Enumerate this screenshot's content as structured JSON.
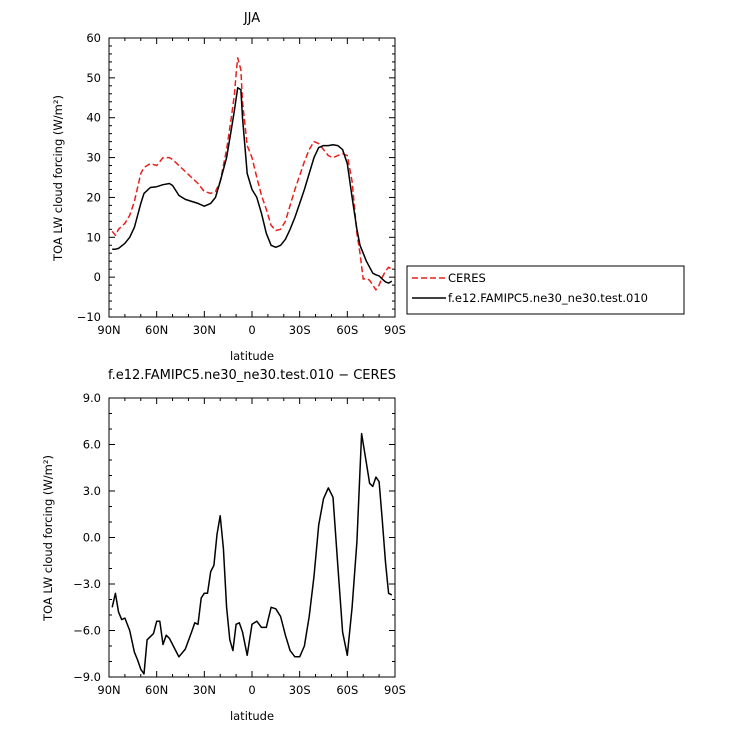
{
  "chart_data": [
    {
      "type": "line",
      "title": "JJA",
      "xlabel": "latitude",
      "ylabel": "TOA LW cloud forcing (W/m²)",
      "xlim": [
        90,
        -90
      ],
      "ylim": [
        -10,
        60
      ],
      "x_ticks": [
        90,
        60,
        30,
        0,
        -30,
        -60,
        -90
      ],
      "x_tick_labels": [
        "90N",
        "60N",
        "30N",
        "0",
        "30S",
        "60S",
        "90S"
      ],
      "y_ticks": [
        -10,
        0,
        10,
        20,
        30,
        40,
        50,
        60
      ],
      "y_tick_labels": [
        "−10",
        "0",
        "10",
        "20",
        "30",
        "40",
        "50",
        "60"
      ],
      "legend_position": "right",
      "series": [
        {
          "name": "CERES",
          "color": "#e8201c",
          "dash": "dashed",
          "x": [
            88,
            86,
            84,
            80,
            77,
            74,
            70,
            68,
            64,
            60,
            56,
            52,
            50,
            46,
            42,
            38,
            34,
            30,
            26,
            23,
            20,
            16,
            13,
            11,
            10,
            9,
            7,
            6,
            3,
            0,
            -3,
            -6,
            -9,
            -12,
            -15,
            -18,
            -21,
            -24,
            -27,
            -30,
            -33,
            -36,
            -39,
            -42,
            -45,
            -48,
            -51,
            -54,
            -57,
            -60,
            -63,
            -66,
            -68,
            -70,
            -72,
            -74,
            -76,
            -78,
            -80,
            -82,
            -84,
            -86,
            -88
          ],
          "values": [
            11.5,
            10.5,
            12,
            13.5,
            15.5,
            19,
            26,
            27.5,
            28.5,
            28,
            30,
            30,
            29.5,
            28,
            26.5,
            25,
            23.5,
            21.5,
            21,
            21.5,
            24,
            32,
            40,
            46,
            51,
            55,
            52,
            44,
            33,
            30,
            25,
            20.5,
            17,
            13,
            11.7,
            12,
            14,
            18,
            22,
            25.5,
            29,
            32,
            34,
            33.5,
            32,
            30.5,
            30,
            30.5,
            31,
            30.5,
            24,
            11,
            6,
            -0.5,
            -0.3,
            -0.8,
            -2,
            -3.2,
            -2,
            0,
            1.5,
            2.5,
            2
          ]
        },
        {
          "name": "f.e12.FAMIPC5.ne30_ne30.test.010",
          "color": "#000000",
          "dash": "solid",
          "x": [
            88,
            86,
            84,
            80,
            77,
            74,
            70,
            68,
            64,
            60,
            56,
            52,
            50,
            46,
            42,
            38,
            34,
            30,
            26,
            23,
            20,
            16,
            13,
            11,
            9,
            7,
            6,
            3,
            0,
            -3,
            -6,
            -9,
            -12,
            -15,
            -18,
            -21,
            -24,
            -27,
            -30,
            -33,
            -36,
            -39,
            -42,
            -45,
            -48,
            -51,
            -54,
            -57,
            -60,
            -63,
            -66,
            -68,
            -70,
            -72,
            -74,
            -76,
            -78,
            -80,
            -82,
            -84,
            -86,
            -88
          ],
          "values": [
            7,
            7,
            7.2,
            8.5,
            10,
            12.5,
            18.5,
            21,
            22.5,
            22.7,
            23.2,
            23.5,
            23,
            20.5,
            19.5,
            19,
            18.5,
            17.8,
            18.5,
            20,
            24,
            30,
            37,
            42,
            47.5,
            47,
            40,
            26,
            22,
            20,
            16,
            11,
            8,
            7.5,
            8,
            9.5,
            12,
            15,
            18.5,
            22,
            26,
            30,
            32.5,
            33,
            33,
            33.2,
            33,
            32,
            28.5,
            20,
            12,
            8,
            6,
            4,
            2.5,
            1,
            0.6,
            0.3,
            -0.5,
            -1.2,
            -1.5,
            -1
          ]
        }
      ]
    },
    {
      "type": "line",
      "title": "f.e12.FAMIPC5.ne30_ne30.test.010 − CERES",
      "xlabel": "latitude",
      "ylabel": "TOA LW cloud forcing (W/m²)",
      "xlim": [
        90,
        -90
      ],
      "ylim": [
        -9,
        9
      ],
      "x_ticks": [
        90,
        60,
        30,
        0,
        -30,
        -60,
        -90
      ],
      "x_tick_labels": [
        "90N",
        "60N",
        "30N",
        "0",
        "30S",
        "60S",
        "90S"
      ],
      "y_ticks": [
        -9,
        -6,
        -3,
        0,
        3,
        6,
        9
      ],
      "y_tick_labels": [
        "−9.0",
        "−6.0",
        "−3.0",
        "0.0",
        "3.0",
        "6.0",
        "9.0"
      ],
      "series": [
        {
          "color": "#000000",
          "dash": "solid",
          "x": [
            88,
            86,
            84,
            82,
            80,
            77,
            74,
            72,
            70,
            68,
            66,
            62,
            60,
            58,
            56,
            54,
            52,
            48,
            46,
            42,
            38,
            36,
            34,
            32,
            30,
            28,
            26,
            24,
            22,
            20,
            18,
            16,
            14,
            12,
            10,
            8,
            6,
            3,
            0,
            -3,
            -6,
            -9,
            -12,
            -15,
            -18,
            -21,
            -24,
            -27,
            -30,
            -33,
            -36,
            -39,
            -42,
            -45,
            -48,
            -51,
            -54,
            -57,
            -60,
            -63,
            -66,
            -69,
            -72,
            -74,
            -76,
            -78,
            -80,
            -82,
            -84,
            -86,
            -88
          ],
          "values": [
            -4.5,
            -3.6,
            -4.8,
            -5.3,
            -5.2,
            -6.0,
            -7.4,
            -7.9,
            -8.5,
            -8.8,
            -6.6,
            -6.2,
            -5.4,
            -5.4,
            -6.9,
            -6.3,
            -6.5,
            -7.3,
            -7.7,
            -7.2,
            -6.1,
            -5.5,
            -5.6,
            -3.9,
            -3.6,
            -3.6,
            -2.2,
            -1.8,
            0.2,
            1.4,
            -0.7,
            -4.5,
            -6.6,
            -7.3,
            -5.6,
            -5.5,
            -6.1,
            -7.6,
            -5.6,
            -5.4,
            -5.8,
            -5.8,
            -4.5,
            -4.6,
            -5.1,
            -6.3,
            -7.3,
            -7.7,
            -7.7,
            -7.0,
            -5.1,
            -2.5,
            0.8,
            2.5,
            3.2,
            2.6,
            -1.8,
            -6.1,
            -7.6,
            -4.5,
            -0.3,
            6.7,
            4.8,
            3.5,
            3.3,
            3.9,
            3.6,
            1.1,
            -1.6,
            -3.6,
            -3.7
          ]
        }
      ]
    }
  ]
}
